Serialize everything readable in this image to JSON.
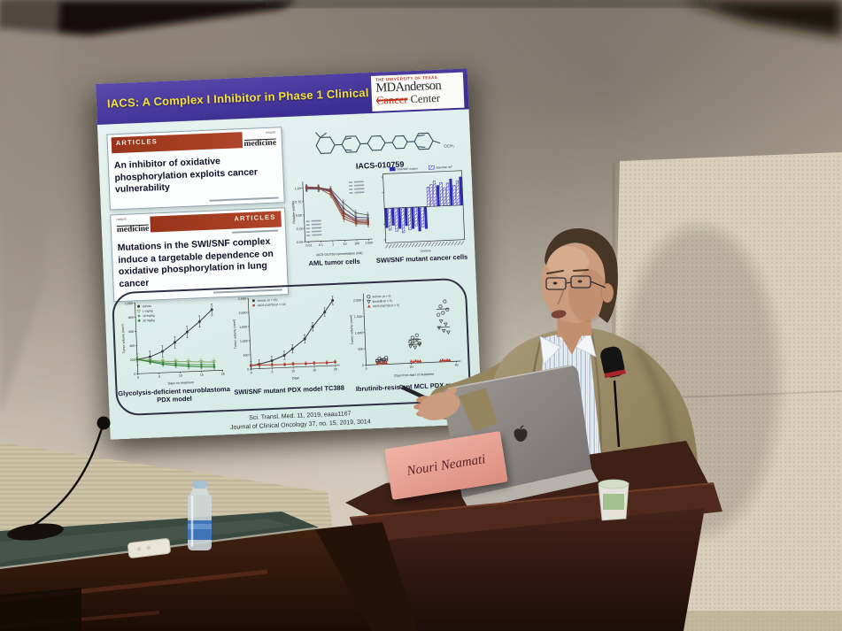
{
  "scene": {
    "nameplate": "Nouri Neamati"
  },
  "slide": {
    "title": "IACS: A Complex I Inhibitor in Phase 1 Clinical Trials",
    "logo": {
      "university": "THE UNIVERSITY OF TEXAS",
      "name": "MDAnderson",
      "cancer": "Cancer",
      "center": "Center"
    },
    "articles": [
      {
        "header": "ARTICLES",
        "journal_top": "nature",
        "journal_bottom": "medicine",
        "headline": "An inhibitor of oxidative phosphorylation exploits cancer vulnerability"
      },
      {
        "header": "ARTICLES",
        "journal_top": "nature",
        "journal_bottom": "medicine",
        "headline": "Mutations in the SWI/SNF complex induce a targetable dependence on oxidative phosphorylation in lung cancer"
      }
    ],
    "compound": "IACS-010759",
    "citations": [
      "Sci. Transl. Med. 11, 2019, eaau1167",
      "Journal of Clinical Oncology 37, no. 15, 2019, 3014"
    ]
  },
  "chart_data": [
    {
      "id": "aml",
      "type": "dose",
      "title_caption": "AML tumor cells",
      "xlabel": "IACS-010759 concentration (nM)",
      "ylabel": "Relative viability",
      "xticks": [
        "0.01",
        "0.1",
        "1",
        "10",
        "100",
        "1,000"
      ],
      "ylim": [
        0,
        1.12
      ],
      "yticks": [
        0,
        0.25,
        0.5,
        0.75,
        1.0
      ],
      "yticklabels": [
        "0.00",
        "0.25",
        "0.50",
        "0.75",
        "1.00"
      ],
      "series": [
        {
          "color": "#7a6a6a",
          "values": [
            1.0,
            1.0,
            0.95,
            0.52,
            0.38,
            0.36
          ],
          "err": 0.05
        },
        {
          "color": "#8a4848",
          "values": [
            1.02,
            1.0,
            0.9,
            0.45,
            0.33,
            0.3
          ],
          "err": 0.05
        },
        {
          "color": "#5a5a7a",
          "values": [
            0.98,
            0.97,
            0.92,
            0.6,
            0.42,
            0.4
          ],
          "err": 0.05
        },
        {
          "color": "#9a5a3a",
          "values": [
            1.0,
            0.99,
            0.85,
            0.4,
            0.3,
            0.28
          ],
          "err": 0.05
        },
        {
          "color": "#6a6a6a",
          "values": [
            1.0,
            0.98,
            0.96,
            0.7,
            0.5,
            0.45
          ],
          "err": 0.05
        },
        {
          "color": "#8a3838",
          "values": [
            1.0,
            1.0,
            0.93,
            0.5,
            0.35,
            0.33
          ],
          "err": 0.05
        }
      ]
    },
    {
      "id": "waterfall",
      "type": "bar",
      "title_caption": "SWI/SNF mutant cancer cells",
      "xlabel": "Cell line",
      "ylim": [
        -110,
        110
      ],
      "legend": [
        "SWI/SNF mutant",
        "SWI/SNF WT"
      ],
      "values": [
        -62,
        -70,
        -55,
        -75,
        -66,
        -80,
        -58,
        -72,
        -68,
        -60,
        -77,
        -64,
        -70,
        62,
        70,
        80,
        66,
        75,
        58,
        72,
        85,
        64,
        78,
        90
      ],
      "hatched": [
        false,
        true,
        false,
        true,
        false,
        true,
        false,
        true,
        false,
        true,
        false,
        true,
        false,
        true,
        true,
        true,
        false,
        true,
        true,
        true,
        false,
        true,
        true,
        false
      ]
    },
    {
      "id": "neuroblastoma",
      "type": "line",
      "title_caption": "Glycolysis-deficient neuroblastoma PDX model",
      "xlabel": "Days on treatment",
      "ylabel": "Tumor volume (mm³)",
      "x": [
        0,
        3,
        6,
        9,
        12,
        15,
        18
      ],
      "xlim": [
        0,
        20
      ],
      "xticks": [
        0,
        5,
        10,
        15,
        20
      ],
      "ylim": [
        0,
        1000
      ],
      "yticks": [
        0,
        200,
        400,
        600,
        800,
        1000
      ],
      "yticklabels": [
        "0",
        "200",
        "400",
        "600",
        "800",
        "1,000"
      ],
      "series": [
        {
          "name": "Vehicle",
          "shape": "circle",
          "color": "#3a3a3a",
          "values": [
            200,
            230,
            300,
            420,
            560,
            700,
            860
          ],
          "err": 80
        },
        {
          "name": "1 mg/kg",
          "shape": "tri-down-open",
          "color": "#8aa86a",
          "values": [
            200,
            180,
            160,
            150,
            140,
            130,
            120
          ],
          "err": 40
        },
        {
          "name": "10 mg/kg",
          "shape": "square",
          "color": "#5a9a5a",
          "values": [
            200,
            170,
            140,
            120,
            100,
            90,
            80
          ],
          "err": 35
        },
        {
          "name": "20 mg/kg",
          "shape": "diamond",
          "color": "#2e7d32",
          "values": [
            200,
            160,
            120,
            95,
            75,
            60,
            50
          ],
          "err": 30
        }
      ]
    },
    {
      "id": "tc388",
      "type": "line",
      "title_caption": "SWI/SNF mutant PDX model TC388",
      "xlabel": "Days",
      "ylabel": "Tumor volume (mm³)",
      "x": [
        0,
        2,
        5,
        8,
        10,
        13,
        15,
        18,
        20
      ],
      "xlim": [
        0,
        21
      ],
      "xticks": [
        0,
        5,
        10,
        15,
        20
      ],
      "ylim": [
        0,
        2500
      ],
      "yticks": [
        0,
        500,
        1000,
        1500,
        2000,
        2500
      ],
      "yticklabels": [
        "0",
        "500",
        "1,000",
        "1,500",
        "2,000",
        "2,500"
      ],
      "series": [
        {
          "name": "Vehicle (n = 15)",
          "shape": "circle",
          "color": "#3a3a3a",
          "values": [
            120,
            160,
            260,
            430,
            650,
            980,
            1400,
            1900,
            2300
          ],
          "err": 150
        },
        {
          "name": "IACS-010759 (n = 10)",
          "shape": "square",
          "color": "#b03a30",
          "values": [
            120,
            130,
            115,
            110,
            120,
            110,
            115,
            110,
            125
          ],
          "err": 60
        }
      ]
    },
    {
      "id": "mcl",
      "type": "scatter",
      "title_caption": "Ibrutinib-resistant MCL PDX model",
      "xlabel": "Days from start of treatment",
      "ylabel": "Tumor volume (mm³)",
      "xlim": [
        0,
        42
      ],
      "xticks": [
        0,
        20,
        40
      ],
      "ylim": [
        0,
        2200
      ],
      "yticks": [
        0,
        500,
        1000,
        1500,
        2000
      ],
      "yticklabels": [
        "0",
        "500",
        "1,000",
        "1,500",
        "2,000"
      ],
      "clusters": [
        [
          2,
          12
        ],
        [
          16,
          28
        ],
        [
          30,
          40
        ]
      ],
      "series": [
        {
          "name": "Vehicle (n = 5)",
          "shape": "circle-open",
          "color": "#444444",
          "points": [
            [
              5,
              120
            ],
            [
              6,
              180
            ],
            [
              7,
              90
            ],
            [
              8,
              150
            ],
            [
              9,
              200
            ],
            [
              20,
              650
            ],
            [
              21,
              780
            ],
            [
              22,
              700
            ],
            [
              23,
              850
            ],
            [
              24,
              600
            ],
            [
              33,
              1450
            ],
            [
              34,
              1700
            ],
            [
              35,
              1500
            ],
            [
              36,
              1850
            ],
            [
              37,
              1600
            ]
          ]
        },
        {
          "name": "Ibrutinib (n = 5)",
          "shape": "tri-down-open",
          "color": "#444444",
          "points": [
            [
              5,
              60
            ],
            [
              6,
              100
            ],
            [
              7,
              140
            ],
            [
              8,
              80
            ],
            [
              9,
              120
            ],
            [
              20,
              520
            ],
            [
              21,
              600
            ],
            [
              22,
              480
            ],
            [
              23,
              700
            ],
            [
              24,
              560
            ],
            [
              33,
              1050
            ],
            [
              34,
              1250
            ],
            [
              35,
              950
            ],
            [
              36,
              1150
            ],
            [
              37,
              900
            ]
          ]
        },
        {
          "name": "IACS-010759 (n = 5)",
          "shape": "tri-up",
          "color": "#c0392b",
          "points": [
            [
              5,
              40
            ],
            [
              6,
              60
            ],
            [
              7,
              30
            ],
            [
              8,
              50
            ],
            [
              9,
              45
            ],
            [
              20,
              60
            ],
            [
              21,
              40
            ],
            [
              22,
              70
            ],
            [
              23,
              50
            ],
            [
              24,
              55
            ],
            [
              33,
              40
            ],
            [
              34,
              60
            ],
            [
              35,
              30
            ],
            [
              36,
              55
            ],
            [
              37,
              45
            ]
          ]
        }
      ]
    }
  ]
}
